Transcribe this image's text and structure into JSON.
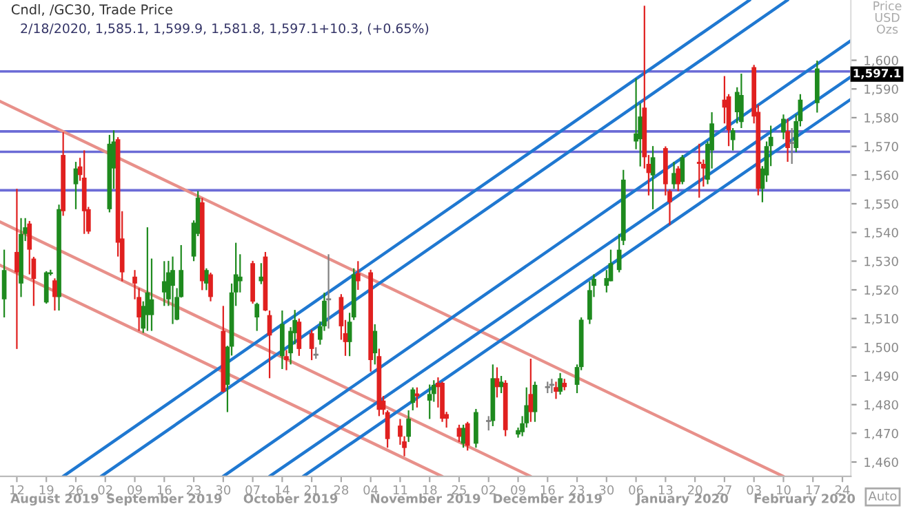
{
  "chart_data": {
    "type": "candlestick",
    "title": "Cndl, /GC30, Trade Price",
    "subtitle": "2/18/2020, 1,585.1, 1,599.9, 1,581.8, 1,597.1+10.3, (+0.65%)",
    "ylabel": "Price USD Ozs",
    "xlim": [
      "2019-08-08",
      "2020-02-26"
    ],
    "ylim": [
      1455,
      1621
    ],
    "xticks": [
      {
        "value": "2019-08-12",
        "label": "12"
      },
      {
        "value": "2019-08-19",
        "label": "19"
      },
      {
        "value": "2019-08-26",
        "label": "26"
      },
      {
        "value": "2019-09-02",
        "label": "02"
      },
      {
        "value": "2019-09-09",
        "label": "09"
      },
      {
        "value": "2019-09-16",
        "label": "16"
      },
      {
        "value": "2019-09-23",
        "label": "23"
      },
      {
        "value": "2019-09-30",
        "label": "30"
      },
      {
        "value": "2019-10-07",
        "label": "07"
      },
      {
        "value": "2019-10-14",
        "label": "14"
      },
      {
        "value": "2019-10-21",
        "label": "21"
      },
      {
        "value": "2019-10-28",
        "label": "28"
      },
      {
        "value": "2019-11-04",
        "label": "04"
      },
      {
        "value": "2019-11-11",
        "label": "11"
      },
      {
        "value": "2019-11-18",
        "label": "18"
      },
      {
        "value": "2019-11-25",
        "label": "25"
      },
      {
        "value": "2019-12-02",
        "label": "02"
      },
      {
        "value": "2019-12-09",
        "label": "09"
      },
      {
        "value": "2019-12-16",
        "label": "16"
      },
      {
        "value": "2019-12-23",
        "label": "23"
      },
      {
        "value": "2019-12-30",
        "label": "30"
      },
      {
        "value": "2020-01-06",
        "label": "06"
      },
      {
        "value": "2020-01-13",
        "label": "13"
      },
      {
        "value": "2020-01-20",
        "label": "20"
      },
      {
        "value": "2020-01-27",
        "label": "27"
      },
      {
        "value": "2020-02-03",
        "label": "03"
      },
      {
        "value": "2020-02-10",
        "label": "10"
      },
      {
        "value": "2020-02-17",
        "label": "17"
      },
      {
        "value": "2020-02-24",
        "label": "24"
      }
    ],
    "x2lim": [
      "2019-08-08",
      "2020-02-26"
    ],
    "x2ticks": [
      {
        "value": "2019-08-21",
        "label": "August 2019"
      },
      {
        "value": "2019-09-16",
        "label": "September 2019"
      },
      {
        "value": "2019-10-16",
        "label": "October 2019"
      },
      {
        "value": "2019-11-17",
        "label": "November 2019"
      },
      {
        "value": "2019-12-16",
        "label": "December 2019"
      },
      {
        "value": "2020-01-17",
        "label": "January 2020"
      },
      {
        "value": "2020-02-15",
        "label": "February 2020"
      }
    ],
    "yticks": [
      {
        "value": 1460,
        "label": "1,460"
      },
      {
        "value": 1470,
        "label": "1,470"
      },
      {
        "value": 1480,
        "label": "1,480"
      },
      {
        "value": 1490,
        "label": "1,490"
      },
      {
        "value": 1500,
        "label": "1,500"
      },
      {
        "value": 1510,
        "label": "1,510"
      },
      {
        "value": 1520,
        "label": "1,520"
      },
      {
        "value": 1530,
        "label": "1,530"
      },
      {
        "value": 1540,
        "label": "1,540"
      },
      {
        "value": 1550,
        "label": "1,550"
      },
      {
        "value": 1560,
        "label": "1,560"
      },
      {
        "value": 1570,
        "label": "1,570"
      },
      {
        "value": 1580,
        "label": "1,580"
      },
      {
        "value": 1590,
        "label": "1,590"
      },
      {
        "value": 1600,
        "label": "1,600"
      }
    ],
    "ref_lines": [
      {
        "axis": "y",
        "value": 1596.1,
        "color": "#6b6bd6"
      },
      {
        "axis": "y",
        "value": 1575.2,
        "color": "#6b6bd6"
      },
      {
        "axis": "y",
        "value": 1568.1,
        "color": "#6b6bd6"
      },
      {
        "axis": "y",
        "value": 1554.7,
        "color": "#6b6bd6"
      }
    ],
    "series": [
      {
        "type": "line",
        "color": "#e8908a",
        "x": [
          "2019-08-08",
          "2020-02-10"
        ],
        "values": [
          1585.7,
          1455
        ]
      },
      {
        "type": "line",
        "color": "#e8908a",
        "x": [
          "2019-08-08",
          "2019-12-12"
        ],
        "values": [
          1543.7,
          1455
        ]
      },
      {
        "type": "line",
        "color": "#e8908a",
        "x": [
          "2019-08-08",
          "2019-11-21"
        ],
        "values": [
          1528.6,
          1455
        ]
      },
      {
        "type": "line",
        "color": "#1f78d1",
        "x": [
          "2019-08-23",
          "2020-02-02"
        ],
        "values": [
          1455,
          1621
        ]
      },
      {
        "type": "line",
        "color": "#1f78d1",
        "x": [
          "2019-09-01",
          "2020-02-11"
        ],
        "values": [
          1455,
          1621
        ]
      },
      {
        "type": "line",
        "color": "#1f78d1",
        "x": [
          "2019-09-30",
          "2020-02-26"
        ],
        "values": [
          1455,
          1606.8
        ]
      },
      {
        "type": "line",
        "color": "#1f78d1",
        "x": [
          "2019-10-11",
          "2020-02-26"
        ],
        "values": [
          1455,
          1594.2
        ]
      },
      {
        "type": "line",
        "color": "#1f78d1",
        "x": [
          "2019-10-19",
          "2020-02-26"
        ],
        "values": [
          1455,
          1586.4
        ]
      },
      {
        "color": "#1e8a1e",
        "x": [
          "2019-08-09",
          "2019-08-13",
          "2019-08-14",
          "2019-08-19",
          "2019-08-20",
          "2019-08-22",
          "2019-08-26",
          "2019-09-03",
          "2019-09-04",
          "2019-09-11",
          "2019-09-12",
          "2019-09-13",
          "2019-09-16",
          "2019-09-17",
          "2019-09-18",
          "2019-09-19",
          "2019-09-20",
          "2019-09-23",
          "2019-09-24",
          "2019-09-26",
          "2019-10-01",
          "2019-10-02",
          "2019-10-03",
          "2019-10-04",
          "2019-10-08",
          "2019-10-09",
          "2019-10-14",
          "2019-10-16",
          "2019-10-17",
          "2019-10-23",
          "2019-10-24",
          "2019-10-30",
          "2019-10-31",
          "2019-11-05",
          "2019-11-13",
          "2019-11-14",
          "2019-11-18",
          "2019-11-19",
          "2019-11-26",
          "2019-11-29",
          "2019-12-03",
          "2019-12-05",
          "2019-12-09",
          "2019-12-10",
          "2019-12-11",
          "2019-12-13",
          "2019-12-19",
          "2019-12-23",
          "2019-12-24",
          "2019-12-26",
          "2019-12-27",
          "2019-12-30",
          "2019-12-31",
          "2020-01-02",
          "2020-01-03",
          "2020-01-06",
          "2020-01-07",
          "2020-01-10",
          "2020-01-15",
          "2020-01-17",
          "2020-01-23",
          "2020-01-24",
          "2020-01-29",
          "2020-01-30",
          "2020-01-31",
          "2020-02-05",
          "2020-02-06",
          "2020-02-07",
          "2020-02-10",
          "2020-02-13",
          "2020-02-14",
          "2020-02-18"
        ],
        "ohlc": [
          [
            1516.7,
            1534,
            1510.4,
            1526.9
          ],
          [
            1522.2,
            1545,
            1517.5,
            1539.5
          ],
          [
            1539.5,
            1545,
            1537,
            1541.8
          ],
          [
            1515.6,
            1526.5,
            1515.2,
            1526.1
          ],
          [
            1525.5,
            1527,
            1525,
            1526.1
          ],
          [
            1517.5,
            1549.7,
            1512.8,
            1548.1
          ],
          [
            1556.8,
            1564.6,
            1548.1,
            1562.3
          ],
          [
            1548.1,
            1574,
            1547,
            1570.9
          ],
          [
            1562.3,
            1575.6,
            1555.2,
            1571.7
          ],
          [
            1506.5,
            1516,
            1505,
            1514.4
          ],
          [
            1511.2,
            1541.8,
            1505.7,
            1519.1
          ],
          [
            1511.2,
            1530.9,
            1505.7,
            1516.7
          ],
          [
            1519.1,
            1530,
            1514.4,
            1523
          ],
          [
            1516.7,
            1530.1,
            1514.4,
            1526.1
          ],
          [
            1521.4,
            1531.6,
            1508.1,
            1526.9
          ],
          [
            1509.6,
            1520.6,
            1509.4,
            1517.5
          ],
          [
            1517.5,
            1535.6,
            1517.3,
            1526.9
          ],
          [
            1531.6,
            1544.2,
            1530,
            1543.4
          ],
          [
            1539.5,
            1554.4,
            1538.7,
            1552.1
          ],
          [
            1522.2,
            1527.5,
            1519.9,
            1526.9
          ],
          [
            1486.9,
            1500.5,
            1477.4,
            1500.2
          ],
          [
            1500.2,
            1522.2,
            1497.1,
            1519.1
          ],
          [
            1519.1,
            1536.4,
            1514.4,
            1525.4
          ],
          [
            1523,
            1532.4,
            1519.1,
            1524.6
          ],
          [
            1510.4,
            1515.5,
            1505.7,
            1515.1
          ],
          [
            1523,
            1529.3,
            1522,
            1524.6
          ],
          [
            1496.9,
            1512.8,
            1492.4,
            1508.1
          ],
          [
            1497.9,
            1507,
            1494,
            1505.7
          ],
          [
            1504.9,
            1513,
            1501,
            1509.5
          ],
          [
            1502.6,
            1509,
            1500.9,
            1507.3
          ],
          [
            1507.3,
            1519,
            1505.7,
            1516.2
          ],
          [
            1501.8,
            1512,
            1496.9,
            1508.9
          ],
          [
            1510.4,
            1527.5,
            1509.5,
            1525.4
          ],
          [
            1497.9,
            1508,
            1494,
            1505.7
          ],
          [
            1468.8,
            1478,
            1467,
            1475.1
          ],
          [
            1480.6,
            1486,
            1478,
            1485.3
          ],
          [
            1481.4,
            1487,
            1475,
            1483.7
          ],
          [
            1483.7,
            1488.5,
            1481,
            1486.9
          ],
          [
            1466.4,
            1473,
            1465,
            1471.9
          ],
          [
            1466.4,
            1478.5,
            1465,
            1477.4
          ],
          [
            1474.3,
            1494,
            1472.5,
            1489.2
          ],
          [
            1486.1,
            1490,
            1484,
            1488
          ],
          [
            1469.6,
            1472,
            1468.5,
            1471.1
          ],
          [
            1470.4,
            1476,
            1469,
            1473.5
          ],
          [
            1473.5,
            1486,
            1472,
            1479.8
          ],
          [
            1477.4,
            1488,
            1474,
            1486.9
          ],
          [
            1484.5,
            1491,
            1483.5,
            1489.2
          ],
          [
            1486.9,
            1494,
            1484,
            1493.1
          ],
          [
            1493.1,
            1510.4,
            1492,
            1509.6
          ],
          [
            1509.6,
            1523,
            1508.1,
            1519.9
          ],
          [
            1521.4,
            1525.4,
            1517.5,
            1523.8
          ],
          [
            1521.4,
            1526.9,
            1519.1,
            1524.1
          ],
          [
            1523,
            1534,
            1523,
            1529.3
          ],
          [
            1526.9,
            1539.5,
            1526.1,
            1534
          ],
          [
            1537.1,
            1561.8,
            1535.6,
            1558.4
          ],
          [
            1571.7,
            1593.7,
            1569,
            1574.5
          ],
          [
            1572.5,
            1585,
            1563,
            1580.4
          ],
          [
            1559.9,
            1570.1,
            1548.1,
            1566.2
          ],
          [
            1556.8,
            1564.6,
            1555.2,
            1560.7
          ],
          [
            1557.6,
            1567,
            1556.8,
            1566.2
          ],
          [
            1558.4,
            1571.7,
            1556.8,
            1570.9
          ],
          [
            1568.6,
            1581.9,
            1562.3,
            1578
          ],
          [
            1572.2,
            1576.4,
            1568.6,
            1575.6
          ],
          [
            1581.9,
            1590.6,
            1578,
            1589
          ],
          [
            1578.5,
            1595.3,
            1576.4,
            1587.9
          ],
          [
            1555.2,
            1563.1,
            1550.5,
            1562.3
          ],
          [
            1559.9,
            1571.7,
            1557.6,
            1570.1
          ],
          [
            1570.1,
            1577.2,
            1563.1,
            1573.3
          ],
          [
            1574.9,
            1581.1,
            1572.5,
            1579.6
          ],
          [
            1569.4,
            1581.1,
            1568,
            1578.8
          ],
          [
            1578.8,
            1588.2,
            1577,
            1586.3
          ],
          [
            1585.1,
            1599.9,
            1581.8,
            1597.1
          ]
        ]
      },
      {
        "color": "#e0201f",
        "x": [
          "2019-08-12",
          "2019-08-15",
          "2019-08-16",
          "2019-08-21",
          "2019-08-23",
          "2019-08-27",
          "2019-08-28",
          "2019-08-29",
          "2019-09-05",
          "2019-09-06",
          "2019-09-09",
          "2019-09-10",
          "2019-09-25",
          "2019-09-27",
          "2019-09-30",
          "2019-10-07",
          "2019-10-10",
          "2019-10-11",
          "2019-10-15",
          "2019-10-18",
          "2019-10-21",
          "2019-10-28",
          "2019-10-29",
          "2019-11-01",
          "2019-11-04",
          "2019-11-06",
          "2019-11-07",
          "2019-11-08",
          "2019-11-11",
          "2019-11-12",
          "2019-11-15",
          "2019-11-20",
          "2019-11-21",
          "2019-11-22",
          "2019-11-25",
          "2019-11-27",
          "2019-12-04",
          "2019-12-06",
          "2019-12-12",
          "2019-12-18",
          "2019-12-20",
          "2020-01-08",
          "2020-01-09",
          "2020-01-13",
          "2020-01-14",
          "2020-01-16",
          "2020-01-21",
          "2020-01-22",
          "2020-01-27",
          "2020-01-28",
          "2020-02-03",
          "2020-02-04",
          "2020-02-11"
        ],
        "ohlc": [
          [
            1533.2,
            1555.2,
            1499.4,
            1526.1
          ],
          [
            1543.1,
            1544,
            1525.4,
            1534
          ],
          [
            1530.9,
            1531.5,
            1514.4,
            1523.8
          ],
          [
            1523.3,
            1524,
            1512.8,
            1517.5
          ],
          [
            1567,
            1574.9,
            1545.8,
            1547.4
          ],
          [
            1563,
            1566,
            1558,
            1560
          ],
          [
            1559.1,
            1568.6,
            1539.5,
            1547.4
          ],
          [
            1548.1,
            1548.9,
            1539.5,
            1540.3
          ],
          [
            1572.5,
            1573.2,
            1531.6,
            1536.4
          ],
          [
            1537.9,
            1547.4,
            1523,
            1526.1
          ],
          [
            1524.6,
            1526.9,
            1516.7,
            1522.2
          ],
          [
            1517.5,
            1520.6,
            1505.7,
            1510.4
          ],
          [
            1550.5,
            1552,
            1519.9,
            1523
          ],
          [
            1525.4,
            1526,
            1516,
            1517.5
          ],
          [
            1505.7,
            1514.4,
            1484.3,
            1484.5
          ],
          [
            1529.3,
            1530.1,
            1515.2,
            1515.9
          ],
          [
            1531.6,
            1533.2,
            1512.6,
            1512.8
          ],
          [
            1511.2,
            1512.8,
            1489.2,
            1504.1
          ],
          [
            1496.9,
            1499,
            1492,
            1495.5
          ],
          [
            1508.9,
            1510,
            1497,
            1499.4
          ],
          [
            1504.9,
            1506,
            1495.5,
            1499.4
          ],
          [
            1517.5,
            1518.5,
            1502.6,
            1507.3
          ],
          [
            1504.9,
            1509.5,
            1497,
            1501.8
          ],
          [
            1525.8,
            1530,
            1520,
            1523
          ],
          [
            1526.1,
            1527,
            1491.5,
            1495.5
          ],
          [
            1496.9,
            1499.5,
            1476,
            1478.2
          ],
          [
            1481.4,
            1483,
            1476.5,
            1478.2
          ],
          [
            1477.4,
            1478,
            1465,
            1468
          ],
          [
            1472.7,
            1475,
            1466,
            1468.8
          ],
          [
            1467.2,
            1469,
            1462,
            1464.9
          ],
          [
            1483.9,
            1486,
            1479,
            1482.9
          ],
          [
            1487.6,
            1489.5,
            1479,
            1486.1
          ],
          [
            1487.6,
            1488,
            1474,
            1475.1
          ],
          [
            1476.7,
            1477.5,
            1472,
            1475.1
          ],
          [
            1471.9,
            1473,
            1467,
            1468.8
          ],
          [
            1473.5,
            1474,
            1464,
            1465.7
          ],
          [
            1489.2,
            1493,
            1482.5,
            1486.1
          ],
          [
            1487.6,
            1488.5,
            1469,
            1471.1
          ],
          [
            1483.7,
            1496,
            1474,
            1477.4
          ],
          [
            1486.1,
            1488,
            1482,
            1484.5
          ],
          [
            1487.6,
            1489,
            1485,
            1486.1
          ],
          [
            1583.5,
            1619,
            1562.3,
            1566.2
          ],
          [
            1563.9,
            1567,
            1552.9,
            1560.7
          ],
          [
            1569.4,
            1570,
            1552.9,
            1556.8
          ],
          [
            1554.4,
            1555,
            1542.6,
            1550.5
          ],
          [
            1562.3,
            1563.1,
            1554.4,
            1556.8
          ],
          [
            1564.6,
            1570.9,
            1552.1,
            1563.9
          ],
          [
            1563.9,
            1565.4,
            1556,
            1562.3
          ],
          [
            1586.3,
            1594.5,
            1578,
            1583.5
          ],
          [
            1587.4,
            1588.2,
            1570.1,
            1575.6
          ],
          [
            1597.6,
            1598.4,
            1578,
            1580.4
          ],
          [
            1582,
            1584.5,
            1552.9,
            1555.2
          ],
          [
            1575.3,
            1579.6,
            1564.6,
            1569.4
          ]
        ]
      },
      {
        "color": "#808080",
        "x": [
          "2019-10-22",
          "2019-10-25",
          "2019-12-02",
          "2019-12-16",
          "2019-12-17",
          "2020-02-12"
        ],
        "ohlc": [
          [
            1497.4,
            1500,
            1496,
            1497.4
          ],
          [
            1516.7,
            1532.4,
            1506.5,
            1516.7
          ],
          [
            1474.3,
            1476,
            1471,
            1474.3
          ],
          [
            1486.1,
            1488,
            1484,
            1486.1
          ],
          [
            1486.9,
            1489,
            1484,
            1486.9
          ],
          [
            1571.2,
            1576.4,
            1563.9,
            1571.2
          ]
        ]
      }
    ],
    "annotations": [
      "1,597.1",
      "Auto"
    ]
  }
}
